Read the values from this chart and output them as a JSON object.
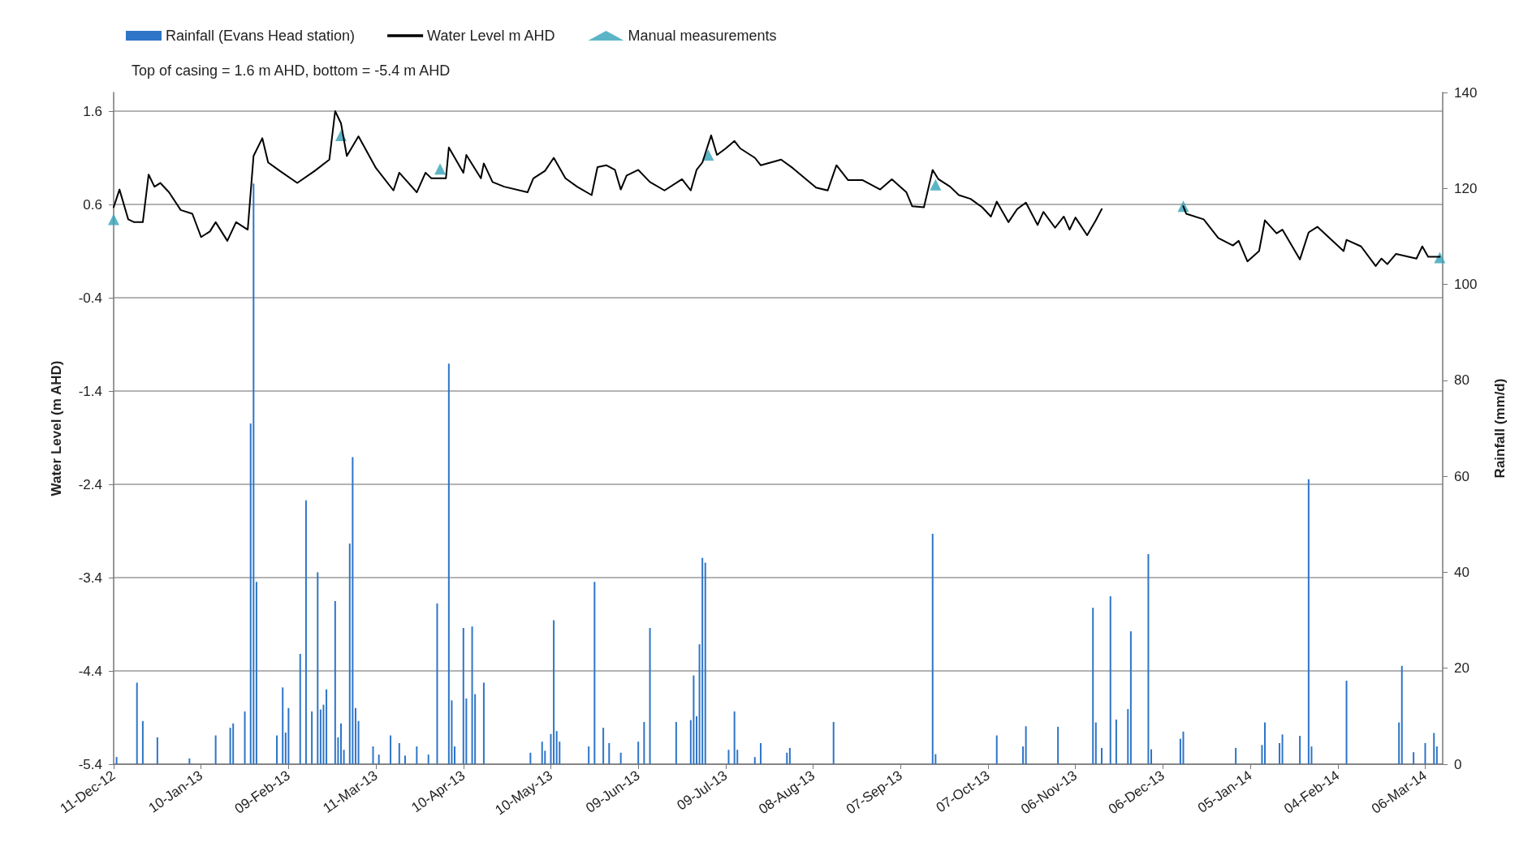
{
  "chart_data": {
    "type": "bar",
    "ylabel": "Water Level (m AHD)",
    "y2label": "Rainfall (mm/d)",
    "annotations": [
      "Top of casing = 1.6 m AHD, bottom = -5.4 m AHD"
    ],
    "xlim": [
      "2012-12-11",
      "2014-03-12"
    ],
    "xticks": [
      {
        "value": "2012-12-11",
        "label": "11-Dec-12"
      },
      {
        "value": "2013-01-10",
        "label": "10-Jan-13"
      },
      {
        "value": "2013-02-09",
        "label": "09-Feb-13"
      },
      {
        "value": "2013-03-11",
        "label": "11-Mar-13"
      },
      {
        "value": "2013-04-10",
        "label": "10-Apr-13"
      },
      {
        "value": "2013-05-10",
        "label": "10-May-13"
      },
      {
        "value": "2013-06-09",
        "label": "09-Jun-13"
      },
      {
        "value": "2013-07-09",
        "label": "09-Jul-13"
      },
      {
        "value": "2013-08-08",
        "label": "08-Aug-13"
      },
      {
        "value": "2013-09-07",
        "label": "07-Sep-13"
      },
      {
        "value": "2013-10-07",
        "label": "07-Oct-13"
      },
      {
        "value": "2013-11-06",
        "label": "06-Nov-13"
      },
      {
        "value": "2013-12-06",
        "label": "06-Dec-13"
      },
      {
        "value": "2014-01-05",
        "label": "05-Jan-14"
      },
      {
        "value": "2014-02-04",
        "label": "04-Feb-14"
      },
      {
        "value": "2014-03-06",
        "label": "06-Mar-14"
      }
    ],
    "ylim": [
      -5.4,
      1.8
    ],
    "yticks": [
      -5.4,
      -4.4,
      -3.4,
      -2.4,
      -1.4,
      -0.4,
      0.6,
      1.6
    ],
    "y2lim": [
      0,
      140
    ],
    "y2ticks": [
      0,
      20,
      40,
      60,
      80,
      100,
      120,
      140
    ],
    "grid": "y",
    "legend": "top left",
    "series": [
      {
        "name": "Rainfall (Evans Head station)",
        "axis": "y2",
        "color": "#2e75c8",
        "x": [
          "2012-12-12",
          "2012-12-19",
          "2012-12-21",
          "2012-12-26",
          "2013-01-06",
          "2013-01-15",
          "2013-01-20",
          "2013-01-21",
          "2013-01-25",
          "2013-01-27",
          "2013-01-28",
          "2013-01-29",
          "2013-02-05",
          "2013-02-07",
          "2013-02-08",
          "2013-02-09",
          "2013-02-13",
          "2013-02-15",
          "2013-02-17",
          "2013-02-19",
          "2013-02-20",
          "2013-02-21",
          "2013-02-22",
          "2013-02-25",
          "2013-02-26",
          "2013-02-27",
          "2013-02-28",
          "2013-03-02",
          "2013-03-03",
          "2013-03-04",
          "2013-03-05",
          "2013-03-10",
          "2013-03-12",
          "2013-03-16",
          "2013-03-19",
          "2013-03-21",
          "2013-03-25",
          "2013-03-29",
          "2013-04-01",
          "2013-04-05",
          "2013-04-06",
          "2013-04-07",
          "2013-04-10",
          "2013-04-11",
          "2013-04-13",
          "2013-04-14",
          "2013-04-17",
          "2013-05-03",
          "2013-05-07",
          "2013-05-08",
          "2013-05-10",
          "2013-05-11",
          "2013-05-12",
          "2013-05-13",
          "2013-05-23",
          "2013-05-25",
          "2013-05-28",
          "2013-05-30",
          "2013-06-03",
          "2013-06-09",
          "2013-06-11",
          "2013-06-13",
          "2013-06-22",
          "2013-06-27",
          "2013-06-28",
          "2013-06-29",
          "2013-06-30",
          "2013-07-01",
          "2013-07-02",
          "2013-07-10",
          "2013-07-12",
          "2013-07-13",
          "2013-07-19",
          "2013-07-21",
          "2013-07-30",
          "2013-07-31",
          "2013-08-15",
          "2013-09-18",
          "2013-09-19",
          "2013-10-10",
          "2013-10-19",
          "2013-10-20",
          "2013-10-31",
          "2013-11-12",
          "2013-11-13",
          "2013-11-15",
          "2013-11-18",
          "2013-11-20",
          "2013-11-24",
          "2013-11-25",
          "2013-12-01",
          "2013-12-02",
          "2013-12-12",
          "2013-12-13",
          "2013-12-31",
          "2014-01-09",
          "2014-01-10",
          "2014-01-15",
          "2014-01-16",
          "2014-01-22",
          "2014-01-25",
          "2014-01-26",
          "2014-02-07",
          "2014-02-25",
          "2014-02-26",
          "2014-03-02",
          "2014-03-06",
          "2014-03-09",
          "2014-03-10"
        ],
        "values": [
          1.5,
          17,
          9,
          5.6,
          1.2,
          6,
          7.6,
          8.5,
          11,
          71,
          121,
          38,
          6,
          16,
          6.6,
          11.7,
          23,
          55,
          11,
          40,
          11.4,
          12.4,
          15.6,
          34,
          5.6,
          8.5,
          3,
          46,
          64,
          11.7,
          9,
          3.7,
          2,
          6,
          4.4,
          1.8,
          3.7,
          2,
          33.5,
          83.5,
          13.3,
          3.7,
          28.4,
          13.7,
          28.7,
          14.6,
          17,
          2.4,
          4.7,
          2.8,
          6.3,
          30,
          6.9,
          4.7,
          3.7,
          38,
          7.6,
          4.4,
          2.4,
          4.7,
          8.8,
          28.4,
          8.8,
          9.2,
          18.5,
          10,
          25,
          43,
          42,
          3,
          11,
          3,
          1.5,
          4.4,
          2.4,
          3.4,
          8.8,
          48,
          2.1,
          6,
          3.7,
          7.9,
          7.8,
          32.6,
          8.7,
          3.4,
          35,
          9.3,
          11.5,
          27.7,
          43.8,
          3.1,
          5.3,
          6.8,
          3.4,
          4,
          8.7,
          4.4,
          6.2,
          5.9,
          59.4,
          3.7,
          17.4,
          8.7,
          20.5,
          2.5,
          4.4,
          6.5,
          3.7
        ]
      },
      {
        "name": "Water Level m AHD",
        "type": "line",
        "color": "#000000",
        "marker": "none",
        "line_style": "solid",
        "x": [
          "2012-12-11",
          "2012-12-13",
          "2012-12-16",
          "2012-12-18",
          "2012-12-21",
          "2012-12-23",
          "2012-12-25",
          "2012-12-27",
          "2012-12-30",
          "2013-01-03",
          "2013-01-07",
          "2013-01-10",
          "2013-01-13",
          "2013-01-15",
          "2013-01-19",
          "2013-01-22",
          "2013-01-26",
          "2013-01-28",
          "2013-01-31",
          "2013-02-02",
          "2013-02-06",
          "2013-02-12",
          "2013-02-18",
          "2013-02-23",
          "2013-02-25",
          "2013-02-27",
          "2013-03-01",
          "2013-03-05",
          "2013-03-11",
          "2013-03-17",
          "2013-03-19",
          "2013-03-25",
          "2013-03-28",
          "2013-03-30",
          "2013-04-04",
          "2013-04-05",
          "2013-04-10",
          "2013-04-11",
          "2013-04-16",
          "2013-04-17",
          "2013-04-20",
          "2013-04-24",
          "2013-05-02",
          "2013-05-04",
          "2013-05-08",
          "2013-05-11",
          "2013-05-15",
          "2013-05-19",
          "2013-05-24",
          "2013-05-26",
          "2013-05-29",
          "2013-06-01",
          "2013-06-03",
          "2013-06-05",
          "2013-06-09",
          "2013-06-13",
          "2013-06-18",
          "2013-06-24",
          "2013-06-27",
          "2013-06-29",
          "2013-07-01",
          "2013-07-04",
          "2013-07-06",
          "2013-07-09",
          "2013-07-12",
          "2013-07-14",
          "2013-07-19",
          "2013-07-21",
          "2013-07-28",
          "2013-08-01",
          "2013-08-09",
          "2013-08-13",
          "2013-08-16",
          "2013-08-20",
          "2013-08-25",
          "2013-08-31",
          "2013-09-04",
          "2013-09-09",
          "2013-09-11",
          "2013-09-15",
          "2013-09-18",
          "2013-09-20",
          "2013-09-24",
          "2013-09-27",
          "2013-10-01",
          "2013-10-05",
          "2013-10-08",
          "2013-10-10",
          "2013-10-14",
          "2013-10-17",
          "2013-10-20",
          "2013-10-24",
          "2013-10-26",
          "2013-10-30",
          "2013-11-02",
          "2013-11-04",
          "2013-11-06",
          "2013-11-10",
          "2013-11-13",
          "2013-11-15",
          "2013-11-26",
          "2013-12-13",
          "2013-12-14",
          "2013-12-20",
          "2013-12-25",
          "2013-12-30",
          "2014-01-01",
          "2014-01-04",
          "2014-01-08",
          "2014-01-10",
          "2014-01-14",
          "2014-01-16",
          "2014-01-22",
          "2014-01-25",
          "2014-01-28",
          "2014-02-06",
          "2014-02-07",
          "2014-02-12",
          "2014-02-17",
          "2014-02-19",
          "2014-02-21",
          "2014-02-24",
          "2014-03-03",
          "2014-03-05",
          "2014-03-07",
          "2014-03-11"
        ],
        "values": [
          0.57,
          0.76,
          0.44,
          0.41,
          0.41,
          0.92,
          0.79,
          0.83,
          0.73,
          0.54,
          0.5,
          0.25,
          0.31,
          0.41,
          0.21,
          0.41,
          0.33,
          1.12,
          1.31,
          1.05,
          0.96,
          0.83,
          0.96,
          1.08,
          1.6,
          1.47,
          1.12,
          1.33,
          0.99,
          0.75,
          0.94,
          0.73,
          0.94,
          0.88,
          0.88,
          1.21,
          0.94,
          1.13,
          0.88,
          1.04,
          0.84,
          0.79,
          0.73,
          0.88,
          0.96,
          1.1,
          0.88,
          0.79,
          0.7,
          1.0,
          1.02,
          0.97,
          0.76,
          0.91,
          0.97,
          0.84,
          0.75,
          0.87,
          0.75,
          0.97,
          1.05,
          1.34,
          1.13,
          1.2,
          1.28,
          1.2,
          1.1,
          1.02,
          1.08,
          0.99,
          0.78,
          0.75,
          1.02,
          0.86,
          0.86,
          0.76,
          0.87,
          0.73,
          0.58,
          0.57,
          0.97,
          0.87,
          0.79,
          0.7,
          0.66,
          0.57,
          0.47,
          0.63,
          0.41,
          0.55,
          0.62,
          0.38,
          0.52,
          0.35,
          0.47,
          0.33,
          0.46,
          0.27,
          0.43,
          0.55,
          null,
          0.58,
          0.5,
          0.44,
          0.24,
          0.16,
          0.21,
          -0.01,
          0.1,
          0.43,
          0.29,
          0.33,
          0.01,
          0.3,
          0.36,
          0.1,
          0.22,
          0.15,
          -0.06,
          0.02,
          -0.04,
          0.07,
          0.02,
          0.15,
          0.04,
          0.04
        ]
      },
      {
        "name": "Manual measurements",
        "type": "scatter",
        "color": "#33a3b8",
        "marker": "triangle",
        "x": [
          "2012-12-11",
          "2013-02-27",
          "2013-04-02",
          "2013-07-03",
          "2013-09-19",
          "2013-12-13",
          "2014-03-11"
        ],
        "values": [
          0.44,
          1.34,
          0.98,
          1.13,
          0.81,
          0.58,
          0.03
        ]
      }
    ]
  }
}
